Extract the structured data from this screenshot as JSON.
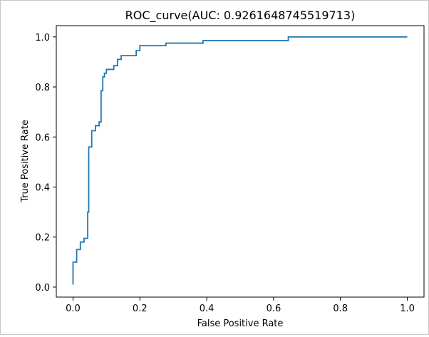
{
  "chart_data": {
    "type": "line",
    "title": "ROC_curve(AUC: 0.9261648745519713)",
    "xlabel": "False Positive Rate",
    "ylabel": "True Positive Rate",
    "xlim": [
      -0.05,
      1.05
    ],
    "ylim": [
      -0.04,
      1.045
    ],
    "xticks": [
      0.0,
      0.2,
      0.4,
      0.6,
      0.8,
      1.0
    ],
    "xtick_labels": [
      "0.0",
      "0.2",
      "0.4",
      "0.6",
      "0.8",
      "1.0"
    ],
    "yticks": [
      0.0,
      0.2,
      0.4,
      0.6,
      0.8,
      1.0
    ],
    "ytick_labels": [
      "0.0",
      "0.2",
      "0.4",
      "0.6",
      "0.8",
      "1.0"
    ],
    "grid": false,
    "line_color": "#1f77b4",
    "series": [
      {
        "x": [
          0.0,
          0.0,
          0.0,
          0.011,
          0.011,
          0.022,
          0.022,
          0.033,
          0.033,
          0.044,
          0.044,
          0.047,
          0.047,
          0.05,
          0.05,
          0.056,
          0.056,
          0.067,
          0.067,
          0.078,
          0.078,
          0.084,
          0.084,
          0.089,
          0.089,
          0.094,
          0.094,
          0.1,
          0.1,
          0.122,
          0.122,
          0.133,
          0.133,
          0.144,
          0.144,
          0.189,
          0.189,
          0.2,
          0.2,
          0.278,
          0.278,
          0.389,
          0.389,
          0.644,
          0.644,
          1.0
        ],
        "y": [
          0.01,
          0.1,
          0.1,
          0.1,
          0.15,
          0.15,
          0.18,
          0.18,
          0.195,
          0.195,
          0.3,
          0.3,
          0.56,
          0.56,
          0.56,
          0.56,
          0.625,
          0.625,
          0.645,
          0.645,
          0.66,
          0.66,
          0.785,
          0.785,
          0.84,
          0.84,
          0.855,
          0.855,
          0.87,
          0.87,
          0.885,
          0.885,
          0.91,
          0.91,
          0.925,
          0.925,
          0.945,
          0.945,
          0.965,
          0.965,
          0.975,
          0.975,
          0.985,
          0.985,
          1.0,
          1.0
        ]
      }
    ]
  }
}
